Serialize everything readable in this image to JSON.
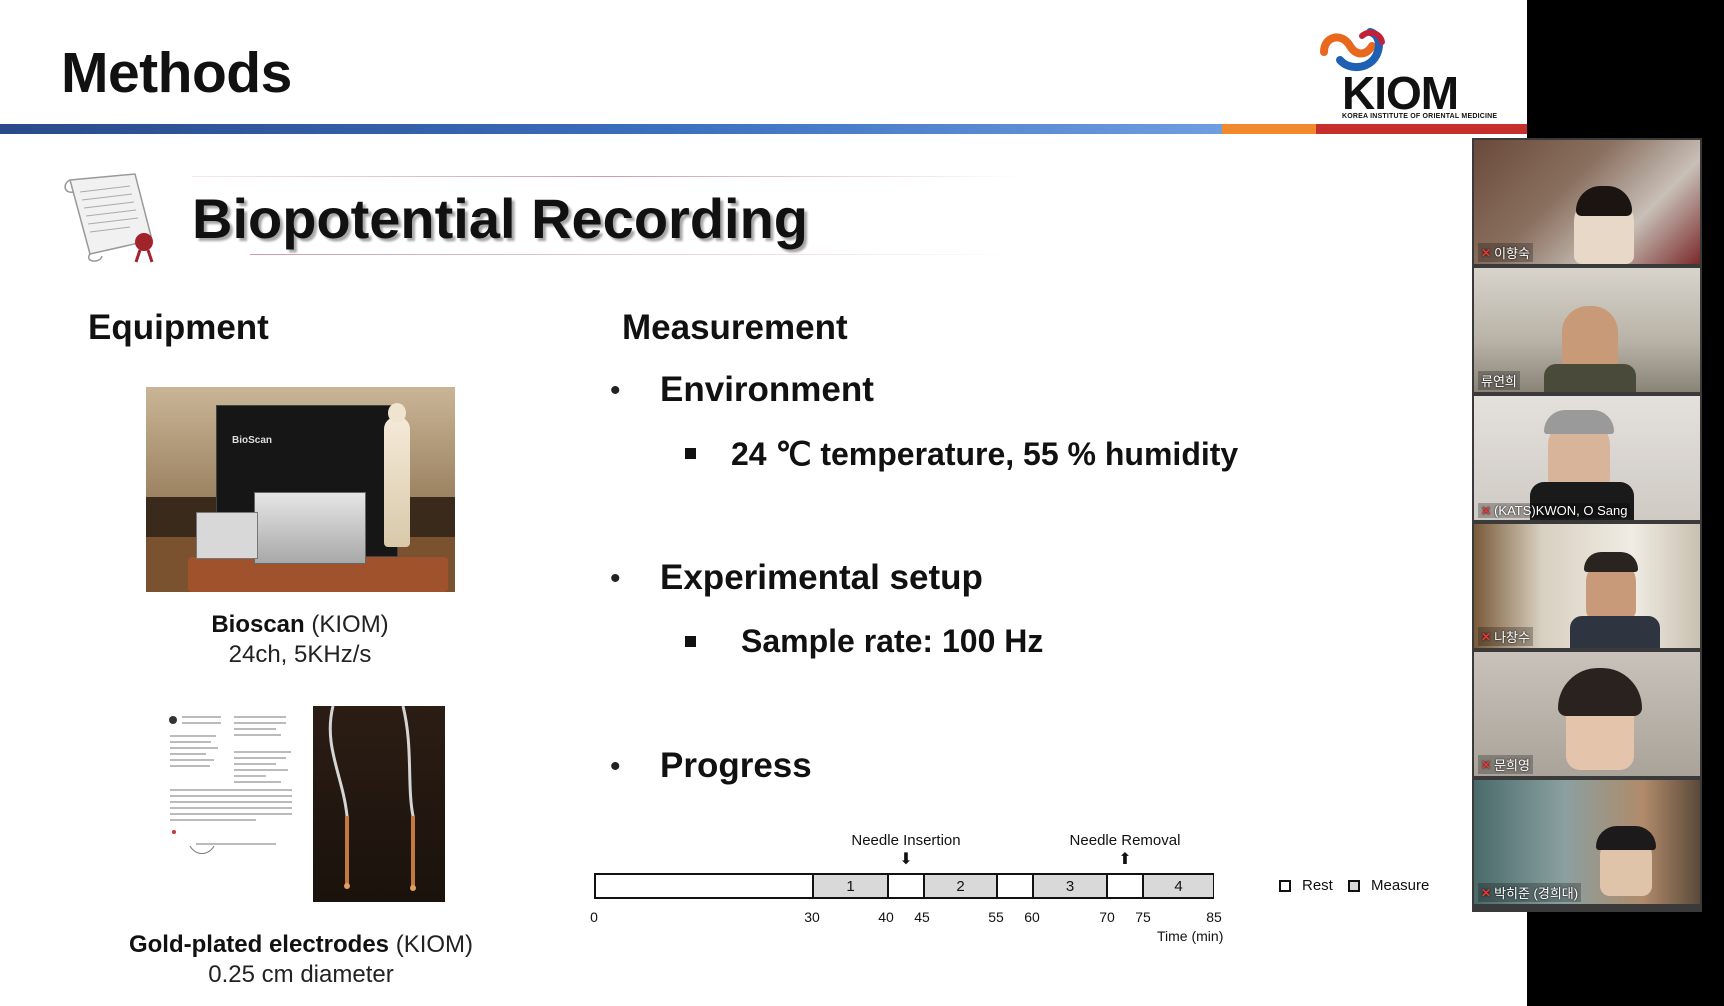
{
  "slide": {
    "title": "Methods",
    "logo": {
      "text": "KIOM",
      "subtitle": "KOREA INSTITUTE OF ORIENTAL MEDICINE"
    },
    "section_title": "Biopotential Recording",
    "equipment": {
      "heading": "Equipment",
      "bioscan_name": "Bioscan",
      "bioscan_org": " (KIOM)",
      "bioscan_spec": "24ch, 5KHz/s",
      "bioscan_photo_label": "BioScan",
      "electrodes_name": "Gold-plated electrodes",
      "electrodes_org": " (KIOM)",
      "electrodes_spec": "0.25 cm diameter"
    },
    "measurement": {
      "heading": "Measurement",
      "bullet_symbol": "•",
      "items": [
        {
          "label": "Environment",
          "sub": "24 ℃ temperature, 55 % humidity"
        },
        {
          "label": "Experimental setup",
          "sub": "Sample rate: 100 Hz"
        },
        {
          "label": "Progress"
        }
      ]
    },
    "timeline": {
      "ticks": [
        "0",
        "30",
        "40",
        "45",
        "55",
        "60",
        "70",
        "75",
        "85"
      ],
      "measure_labels": [
        "1",
        "2",
        "3",
        "4"
      ],
      "needle_insertion": "Needle Insertion",
      "needle_removal": "Needle Removal",
      "time_label": "Time (min)",
      "legend_rest": "Rest",
      "legend_measure": "Measure"
    }
  },
  "participants": [
    {
      "name": "이향숙",
      "muted": true
    },
    {
      "name": "류연희",
      "muted": false
    },
    {
      "name": "(KATS)KWON, O Sang",
      "muted": true
    },
    {
      "name": "나창수",
      "muted": true
    },
    {
      "name": "문희영",
      "muted": true
    },
    {
      "name": "박히준 (경희대)",
      "muted": true
    }
  ]
}
